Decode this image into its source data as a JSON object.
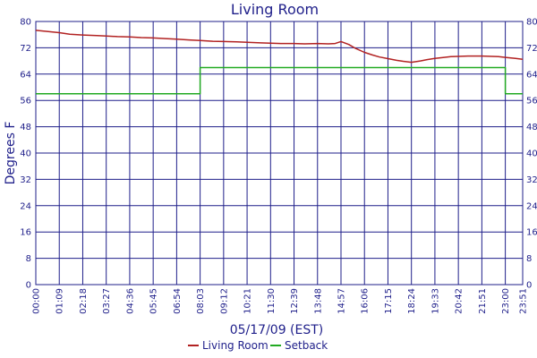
{
  "chart_data": {
    "type": "line",
    "title": "Living Room",
    "xlabel": "05/17/09 (EST)",
    "ylabel": "Degrees F",
    "ylim": [
      0,
      80
    ],
    "y_ticks": [
      "0",
      "8",
      "16",
      "24",
      "32",
      "40",
      "48",
      "56",
      "64",
      "72",
      "80"
    ],
    "x_ticks": [
      "00:00",
      "01:09",
      "02:18",
      "03:27",
      "04:36",
      "05:45",
      "06:54",
      "08:03",
      "09:12",
      "10:21",
      "11:30",
      "12:39",
      "13:48",
      "14:57",
      "16:06",
      "17:15",
      "18:24",
      "19:33",
      "20:42",
      "21:51",
      "23:00",
      "23:51"
    ],
    "grid": true,
    "legend_position": "bottom",
    "series": [
      {
        "name": "Living Room",
        "color": "#b22222",
        "x": [
          "00:00",
          "00:30",
          "01:09",
          "01:40",
          "02:18",
          "03:00",
          "03:27",
          "04:00",
          "04:36",
          "05:10",
          "05:45",
          "06:20",
          "06:54",
          "07:30",
          "08:03",
          "08:40",
          "09:12",
          "09:50",
          "10:21",
          "11:00",
          "11:30",
          "12:00",
          "12:39",
          "13:10",
          "13:48",
          "14:20",
          "14:40",
          "14:57",
          "15:20",
          "15:40",
          "16:06",
          "16:30",
          "16:50",
          "17:15",
          "17:40",
          "18:00",
          "18:24",
          "18:50",
          "19:10",
          "19:33",
          "20:00",
          "20:20",
          "20:42",
          "21:10",
          "21:30",
          "21:51",
          "22:20",
          "22:40",
          "23:00",
          "23:30",
          "23:51"
        ],
        "y": [
          77.3,
          77.0,
          76.6,
          76.1,
          75.9,
          75.7,
          75.6,
          75.4,
          75.3,
          75.1,
          75.0,
          74.8,
          74.6,
          74.4,
          74.2,
          74.0,
          73.9,
          73.8,
          73.7,
          73.5,
          73.4,
          73.3,
          73.3,
          73.2,
          73.3,
          73.2,
          73.3,
          73.9,
          73.0,
          71.8,
          70.6,
          69.8,
          69.2,
          68.7,
          68.2,
          67.9,
          67.6,
          68.0,
          68.4,
          68.8,
          69.1,
          69.3,
          69.4,
          69.5,
          69.5,
          69.5,
          69.4,
          69.3,
          69.1,
          68.8,
          68.5
        ]
      },
      {
        "name": "Setback",
        "color": "#22aa22",
        "x": [
          "00:00",
          "08:03",
          "08:03",
          "23:00",
          "23:00",
          "23:51"
        ],
        "y": [
          58,
          58,
          66,
          66,
          58,
          58
        ]
      }
    ]
  }
}
